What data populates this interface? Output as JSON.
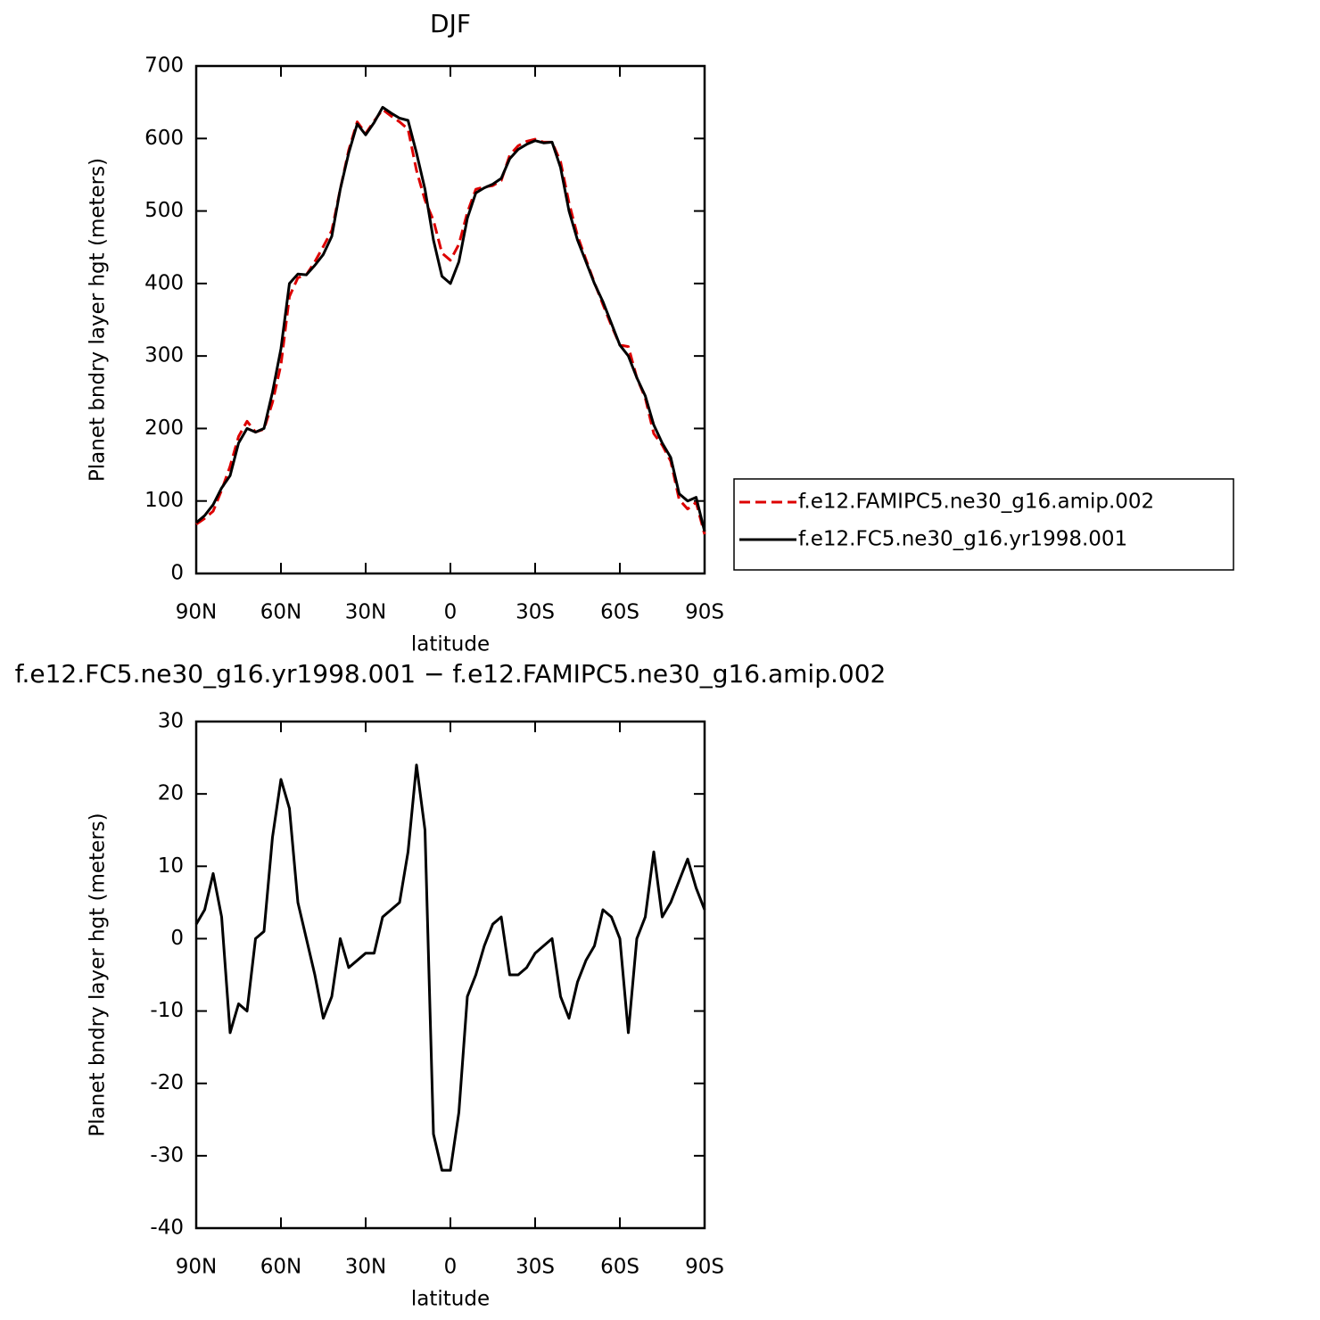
{
  "chart_data": [
    {
      "type": "line",
      "title": "DJF",
      "x_label": "latitude",
      "y_label": "Planet bndry layer hgt (meters)",
      "x": [
        90,
        87,
        84,
        81,
        78,
        75,
        72,
        69,
        66,
        63,
        60,
        57,
        54,
        51,
        48,
        45,
        42,
        39,
        36,
        33,
        30,
        27,
        24,
        21,
        18,
        15,
        12,
        9,
        6,
        3,
        0,
        -3,
        -6,
        -9,
        -12,
        -15,
        -18,
        -21,
        -24,
        -27,
        -30,
        -33,
        -36,
        -39,
        -42,
        -45,
        -48,
        -51,
        -54,
        -57,
        -60,
        -63,
        -66,
        -69,
        -72,
        -75,
        -78,
        -81,
        -84,
        -87,
        -90
      ],
      "series": [
        {
          "name": "f.e12.FAMIPC5.ne30_g16.amip.002",
          "color": "#dd0000",
          "dashed": true,
          "values": [
            68,
            76,
            86,
            115,
            148,
            189,
            210,
            195,
            199,
            236,
            288,
            382,
            408,
            412,
            430,
            451,
            473,
            530,
            584,
            623,
            607,
            624,
            640,
            631,
            623,
            613,
            556,
            515,
            487,
            442,
            432,
            454,
            498,
            530,
            533,
            535,
            542,
            577,
            590,
            596,
            599,
            595,
            595,
            568,
            511,
            466,
            433,
            401,
            371,
            342,
            315,
            313,
            270,
            242,
            193,
            177,
            155,
            102,
            89,
            98,
            54
          ]
        },
        {
          "name": "f.e12.FC5.ne30_g16.yr1998.001",
          "color": "#000000",
          "dashed": false,
          "values": [
            70,
            80,
            95,
            118,
            135,
            180,
            200,
            195,
            200,
            250,
            310,
            400,
            413,
            412,
            425,
            440,
            465,
            530,
            580,
            620,
            605,
            622,
            643,
            635,
            628,
            625,
            580,
            530,
            460,
            410,
            400,
            430,
            490,
            525,
            532,
            537,
            545,
            572,
            585,
            592,
            597,
            594,
            595,
            560,
            500,
            460,
            430,
            400,
            375,
            345,
            315,
            300,
            270,
            245,
            205,
            180,
            160,
            110,
            100,
            105,
            58
          ]
        }
      ],
      "xlim": [
        90,
        -90
      ],
      "xticks": [
        {
          "value": 90,
          "label": "90N"
        },
        {
          "value": 60,
          "label": "60N"
        },
        {
          "value": 30,
          "label": "30N"
        },
        0,
        {
          "value": -30,
          "label": "30S"
        },
        {
          "value": -60,
          "label": "60S"
        },
        {
          "value": -90,
          "label": "90S"
        }
      ],
      "ylim": [
        0,
        700
      ],
      "yticks": [
        0,
        100,
        200,
        300,
        400,
        500,
        600,
        700
      ],
      "legend": "right"
    },
    {
      "type": "line",
      "title": "f.e12.FC5.ne30_g16.yr1998.001 − f.e12.FAMIPC5.ne30_g16.amip.002",
      "x_label": "latitude",
      "y_label": "Planet bndry layer hgt (meters)",
      "x": [
        90,
        87,
        84,
        81,
        78,
        75,
        72,
        69,
        66,
        63,
        60,
        57,
        54,
        51,
        48,
        45,
        42,
        39,
        36,
        33,
        30,
        27,
        24,
        21,
        18,
        15,
        12,
        9,
        6,
        3,
        0,
        -3,
        -6,
        -9,
        -12,
        -15,
        -18,
        -21,
        -24,
        -27,
        -30,
        -33,
        -36,
        -39,
        -42,
        -45,
        -48,
        -51,
        -54,
        -57,
        -60,
        -63,
        -66,
        -69,
        -72,
        -75,
        -78,
        -81,
        -84,
        -87,
        -90
      ],
      "values": [
        2,
        4,
        9,
        3,
        -13,
        -9,
        -10,
        0,
        1,
        14,
        22,
        18,
        5,
        0,
        -5,
        -11,
        -8,
        0,
        -4,
        -3,
        -2,
        -2,
        3,
        4,
        5,
        12,
        24,
        15,
        -27,
        -32,
        -32,
        -24,
        -8,
        -5,
        -1,
        2,
        3,
        -5,
        -5,
        -4,
        -2,
        -1,
        0,
        -8,
        -11,
        -6,
        -3,
        -1,
        4,
        3,
        0,
        -13,
        0,
        3,
        12,
        3,
        5,
        8,
        11,
        7,
        4
      ],
      "color": "#000000",
      "xlim": [
        90,
        -90
      ],
      "xticks": [
        {
          "value": 90,
          "label": "90N"
        },
        {
          "value": 60,
          "label": "60N"
        },
        {
          "value": 30,
          "label": "30N"
        },
        0,
        {
          "value": -30,
          "label": "30S"
        },
        {
          "value": -60,
          "label": "60S"
        },
        {
          "value": -90,
          "label": "90S"
        }
      ],
      "ylim": [
        -40,
        30
      ],
      "yticks": [
        -40,
        -30,
        -20,
        -10,
        0,
        10,
        20,
        30
      ]
    }
  ]
}
